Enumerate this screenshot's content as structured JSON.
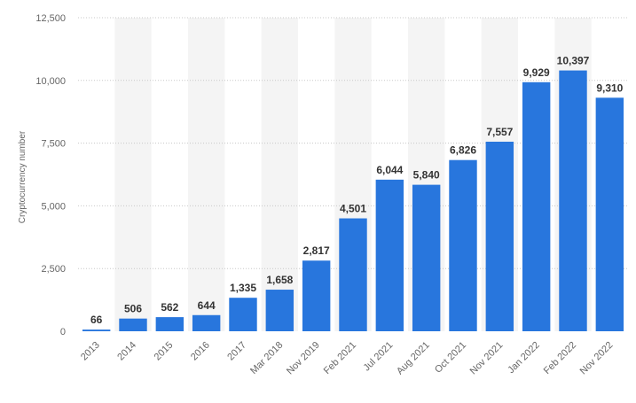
{
  "chart_data": {
    "type": "bar",
    "title": "",
    "xlabel": "",
    "ylabel": "Cryptocurrency number",
    "categories": [
      "2013",
      "2014",
      "2015",
      "2016",
      "2017",
      "Mar 2018",
      "Nov 2019",
      "Feb 2021",
      "Jul 2021",
      "Aug 2021",
      "Oct 2021",
      "Nov 2021",
      "Jan 2022",
      "Feb 2022",
      "Nov 2022"
    ],
    "values": [
      66,
      506,
      562,
      644,
      1335,
      1658,
      2817,
      4501,
      6044,
      5840,
      6826,
      7557,
      9929,
      10397,
      9310
    ],
    "value_labels": [
      "66",
      "506",
      "562",
      "644",
      "1,335",
      "1,658",
      "2,817",
      "4,501",
      "6,044",
      "5,840",
      "6,826",
      "7,557",
      "9,929",
      "10,397",
      "9,310"
    ],
    "ylim": [
      0,
      12500
    ],
    "yticks": [
      0,
      2500,
      5000,
      7500,
      10000,
      12500
    ],
    "ytick_labels": [
      "0",
      "2,500",
      "5,000",
      "7,500",
      "10,000",
      "12,500"
    ],
    "grid": true,
    "grid_style": "dotted",
    "legend": "none",
    "colors": {
      "bar": "#2876dd",
      "band": "#f4f4f4",
      "grid": "#c8c8c8",
      "text": "#333333",
      "axis_text": "#666666"
    }
  }
}
